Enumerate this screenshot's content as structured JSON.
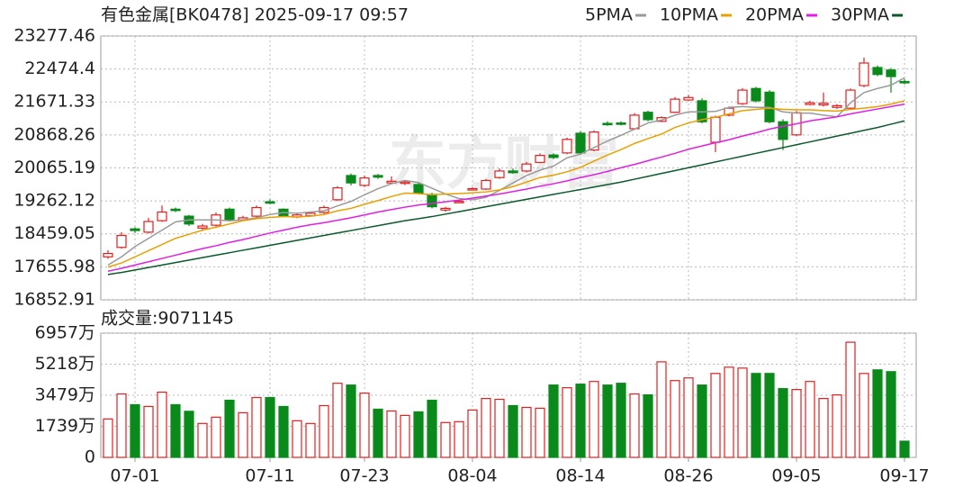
{
  "chart_data": [
    {
      "type": "candlestick",
      "title": "有色金属[BK0478] 2025-09-17 09:57",
      "watermark": "东方财富",
      "categories": [
        null,
        null,
        "07-01",
        null,
        null,
        null,
        null,
        null,
        null,
        null,
        null,
        null,
        "07-11",
        null,
        null,
        null,
        null,
        null,
        null,
        "07-23",
        null,
        null,
        null,
        null,
        null,
        null,
        null,
        "08-04",
        null,
        null,
        null,
        null,
        null,
        null,
        null,
        "08-14",
        null,
        null,
        null,
        null,
        null,
        null,
        null,
        "08-26",
        null,
        null,
        null,
        null,
        null,
        null,
        null,
        "09-05",
        null,
        null,
        null,
        null,
        null,
        null,
        null,
        "09-17"
      ],
      "open": [
        17900,
        18130,
        18580,
        18500,
        18780,
        19060,
        18890,
        18600,
        18670,
        19060,
        18800,
        18890,
        19240,
        19060,
        18870,
        18900,
        18980,
        19290,
        19880,
        19640,
        19880,
        19700,
        19690,
        19660,
        19420,
        19040,
        19240,
        19540,
        19550,
        19830,
        19990,
        19990,
        20200,
        20380,
        20430,
        20910,
        20500,
        21150,
        21160,
        21020,
        21420,
        21200,
        21420,
        21720,
        21700,
        20690,
        21350,
        21630,
        22000,
        21910,
        21190,
        20870,
        21610,
        21600,
        21540,
        21520,
        22070,
        22510,
        22450,
        22170
      ],
      "high": [
        18060,
        18500,
        18620,
        18850,
        19150,
        19100,
        18920,
        18700,
        18980,
        19100,
        18900,
        19150,
        19300,
        19080,
        18960,
        19000,
        19150,
        19620,
        19930,
        19880,
        19920,
        19860,
        19760,
        19700,
        19460,
        19120,
        19280,
        19600,
        19800,
        20050,
        20050,
        20210,
        20420,
        20420,
        20800,
        20960,
        20980,
        21200,
        21200,
        21400,
        21460,
        21320,
        21790,
        21840,
        21760,
        21340,
        21560,
        22010,
        22040,
        21960,
        21250,
        21450,
        21700,
        21900,
        21620,
        22000,
        22750,
        22560,
        22500,
        22230
      ],
      "low": [
        17850,
        18100,
        18480,
        18470,
        18750,
        18990,
        18650,
        18560,
        18640,
        18760,
        18780,
        18860,
        19180,
        18860,
        18840,
        18880,
        18950,
        19260,
        19640,
        19600,
        19800,
        19680,
        19650,
        19420,
        19080,
        19000,
        19220,
        19520,
        19530,
        19800,
        19920,
        19960,
        20180,
        20280,
        20400,
        20400,
        20470,
        21090,
        21100,
        20990,
        21200,
        21180,
        21400,
        21690,
        21150,
        20450,
        21320,
        21600,
        21660,
        21150,
        20500,
        20840,
        21590,
        21560,
        21500,
        21490,
        22030,
        22300,
        21900,
        22100
      ],
      "close": [
        17980,
        18420,
        18540,
        18760,
        18990,
        19030,
        18700,
        18650,
        18920,
        18800,
        18850,
        19100,
        19210,
        18900,
        18920,
        18960,
        19100,
        19580,
        19700,
        19820,
        19840,
        19740,
        19720,
        19450,
        19120,
        19080,
        19250,
        19560,
        19760,
        19990,
        19950,
        20160,
        20370,
        20320,
        20760,
        20430,
        20940,
        21130,
        21140,
        21350,
        21240,
        21290,
        21740,
        21780,
        21190,
        21300,
        21520,
        21960,
        21700,
        21190,
        20760,
        21410,
        21650,
        21640,
        21580,
        21960,
        22620,
        22340,
        22290,
        22150
      ],
      "up_color": "#e02020",
      "down_color": "#0a8a1a",
      "series": [
        {
          "name": "5PMA",
          "color": "#9a9a9a",
          "values": [
            17700,
            17900,
            18150,
            18350,
            18550,
            18750,
            18800,
            18800,
            18800,
            18780,
            18800,
            18850,
            18930,
            18980,
            18960,
            18990,
            19020,
            19140,
            19250,
            19410,
            19560,
            19680,
            19760,
            19710,
            19570,
            19430,
            19320,
            19290,
            19350,
            19520,
            19700,
            19880,
            20010,
            20110,
            20310,
            20400,
            20560,
            20720,
            20860,
            21010,
            21160,
            21230,
            21350,
            21430,
            21430,
            21440,
            21540,
            21560,
            21540,
            21540,
            21430,
            21400,
            21400,
            21350,
            21310,
            21650,
            21900,
            22000,
            22080,
            22260
          ]
        },
        {
          "name": "10PMA",
          "color": "#e8a000",
          "values": [
            17650,
            17750,
            17900,
            18050,
            18200,
            18350,
            18450,
            18550,
            18620,
            18700,
            18780,
            18830,
            18860,
            18880,
            18870,
            18890,
            18930,
            19020,
            19080,
            19180,
            19270,
            19370,
            19450,
            19440,
            19410,
            19430,
            19440,
            19460,
            19480,
            19530,
            19610,
            19720,
            19830,
            19890,
            19970,
            20080,
            20230,
            20380,
            20510,
            20660,
            20780,
            20890,
            21050,
            21160,
            21240,
            21300,
            21380,
            21460,
            21490,
            21520,
            21490,
            21480,
            21480,
            21460,
            21450,
            21490,
            21520,
            21560,
            21620,
            21700
          ]
        },
        {
          "name": "20PMA",
          "color": "#e020e0",
          "values": [
            17550,
            17620,
            17700,
            17780,
            17860,
            17940,
            18020,
            18100,
            18170,
            18250,
            18320,
            18400,
            18480,
            18550,
            18620,
            18680,
            18730,
            18790,
            18850,
            18920,
            18990,
            19050,
            19110,
            19160,
            19200,
            19240,
            19280,
            19330,
            19380,
            19430,
            19490,
            19550,
            19620,
            19680,
            19750,
            19830,
            19900,
            19980,
            20070,
            20150,
            20240,
            20330,
            20420,
            20520,
            20600,
            20680,
            20750,
            20840,
            20920,
            21010,
            21080,
            21140,
            21210,
            21260,
            21310,
            21380,
            21440,
            21500,
            21560,
            21620
          ]
        },
        {
          "name": "30PMA",
          "color": "#0a5a2a",
          "values": [
            17470,
            17520,
            17580,
            17640,
            17700,
            17760,
            17820,
            17880,
            17940,
            18000,
            18060,
            18120,
            18180,
            18240,
            18300,
            18360,
            18420,
            18480,
            18540,
            18600,
            18660,
            18720,
            18780,
            18830,
            18880,
            18940,
            19000,
            19060,
            19120,
            19180,
            19240,
            19300,
            19360,
            19420,
            19480,
            19540,
            19600,
            19660,
            19720,
            19790,
            19860,
            19930,
            20000,
            20070,
            20140,
            20210,
            20280,
            20350,
            20420,
            20490,
            20560,
            20630,
            20700,
            20770,
            20840,
            20910,
            20980,
            21050,
            21130,
            21210
          ]
        }
      ],
      "ylim": [
        16852.91,
        23277.46
      ],
      "yticks": [
        16852.91,
        17655.98,
        18459.05,
        19262.12,
        20065.19,
        20868.26,
        21671.33,
        22474.4,
        23277.46
      ],
      "grid": true
    },
    {
      "type": "bar",
      "title": "成交量:9071145",
      "values": [
        2150,
        3550,
        2950,
        2850,
        3650,
        2950,
        2580,
        1900,
        2250,
        3200,
        2500,
        3350,
        3350,
        2850,
        2050,
        1900,
        2900,
        4150,
        4050,
        3600,
        2700,
        2600,
        2350,
        2550,
        3200,
        1950,
        2000,
        2650,
        3300,
        3250,
        2900,
        2800,
        2750,
        4050,
        3900,
        4100,
        4250,
        4050,
        4150,
        3550,
        3500,
        5350,
        4300,
        4450,
        4050,
        4700,
        5050,
        5000,
        4700,
        4700,
        3850,
        3800,
        4250,
        3300,
        3500,
        6450,
        4700,
        4900,
        4800,
        907.1145
      ],
      "ylim": [
        0,
        6957
      ],
      "yticks": [
        0,
        {
          "value": 1739,
          "label": "1739万"
        },
        {
          "value": 3479,
          "label": "3479万"
        },
        {
          "value": 5218,
          "label": "5218万"
        },
        {
          "value": 6957,
          "label": "6957万"
        }
      ],
      "grid": true
    }
  ]
}
